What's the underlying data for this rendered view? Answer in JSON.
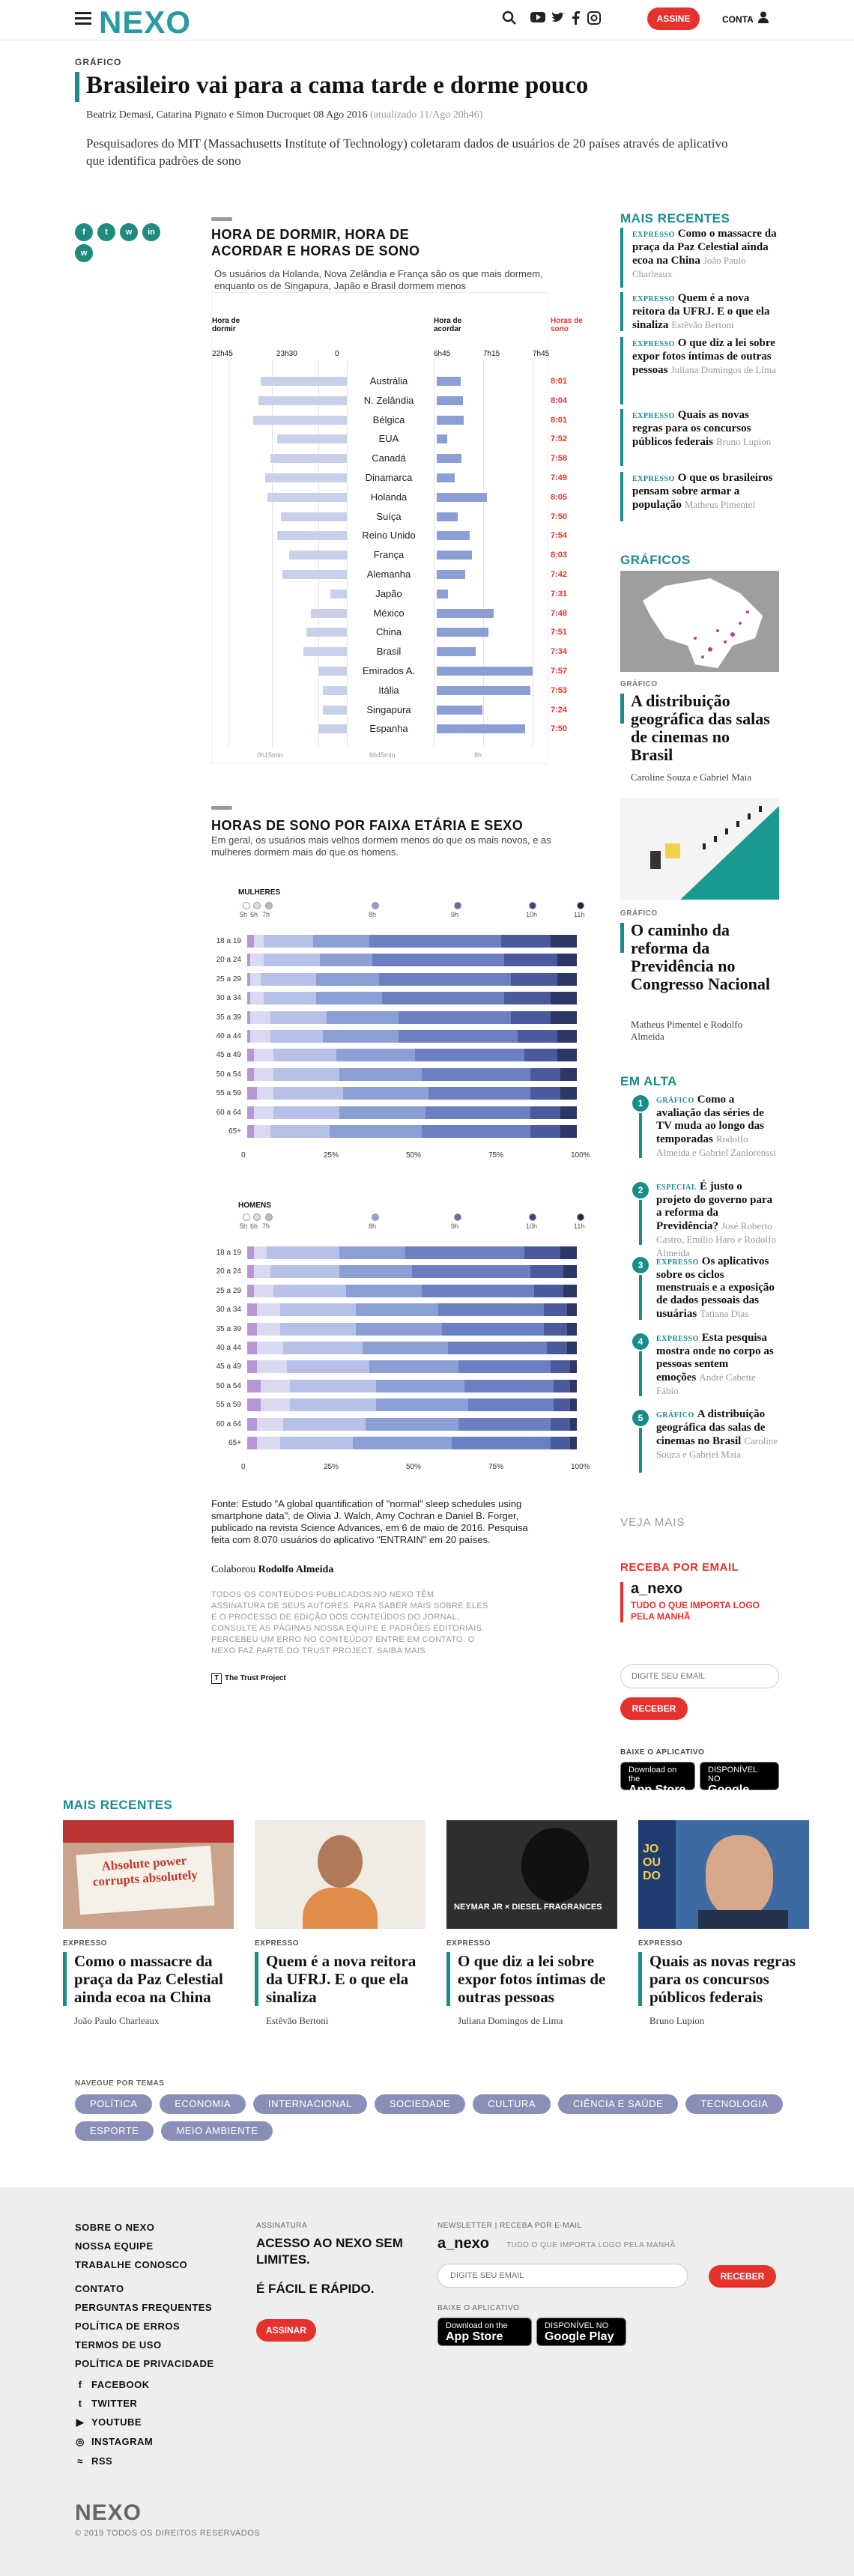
{
  "header": {
    "logo": "NEXO",
    "subscribe": "ASSINE",
    "account": "CONTA"
  },
  "article": {
    "section": "GRÁFICO",
    "title": "Brasileiro vai para a cama tarde e dorme pouco",
    "byline": "Beatriz Demasi, Catarina Pignato e Simon Ducroquet 08 Ago 2016",
    "updated": "(atualizado 11/Ago 20h46)",
    "standfirst": "Pesquisadores do MIT (Massachusetts Institute of Technology) coletaram dados de usuários de 20 países através de aplicativo que identifica padrões de sono"
  },
  "share_icons": [
    "facebook-icon",
    "twitter-icon",
    "whatsapp-icon",
    "linkedin-icon",
    "whatsapp-icon"
  ],
  "chart_data": [
    {
      "type": "bar",
      "title": "HORA DE DORMIR, HORA DE ACORDAR E HORAS DE SONO",
      "subtitle": "Os usuários da Holanda, Nova Zelândia e França são os que mais dormem, enquanto os de Singapura, Japão e Brasil dormem menos",
      "col_bed": "Hora de dormir",
      "col_wake": "Hora de acordar",
      "col_sleep": "Horas de sono",
      "bed_ticks": [
        "22h45",
        "23h30",
        "0"
      ],
      "wake_ticks": [
        "6h45",
        "7h15",
        "7h45"
      ],
      "footer_ticks": [
        "0h15min",
        "6h45min",
        "8h"
      ],
      "categories": [
        "Austrália",
        "N. Zelândia",
        "Bélgica",
        "EUA",
        "Canadá",
        "Dinamarca",
        "Holanda",
        "Suíça",
        "Reino Unido",
        "França",
        "Alemanha",
        "Japão",
        "México",
        "China",
        "Brasil",
        "Emirados A.",
        "Itália",
        "Singapura",
        "Espanha"
      ],
      "sleep_hours": [
        "8:01",
        "8:04",
        "8:01",
        "7:52",
        "7:58",
        "7:49",
        "8:05",
        "7:50",
        "7:54",
        "8:03",
        "7:42",
        "7:31",
        "7:48",
        "7:51",
        "7:34",
        "7:57",
        "7:53",
        "7:24",
        "7:50"
      ],
      "bedtime_offset": [
        0.72,
        0.74,
        0.78,
        0.58,
        0.64,
        0.68,
        0.66,
        0.55,
        0.58,
        0.48,
        0.54,
        0.14,
        0.3,
        0.34,
        0.36,
        0.24,
        0.2,
        0.2,
        0.24
      ],
      "wake_len": [
        0.25,
        0.27,
        0.28,
        0.11,
        0.26,
        0.19,
        0.52,
        0.22,
        0.34,
        0.37,
        0.3,
        0.12,
        0.59,
        0.54,
        0.41,
        1.0,
        0.98,
        0.48,
        0.92
      ]
    },
    {
      "type": "bar",
      "title": "HORAS DE SONO POR FAIXA ETÁRIA E SEXO",
      "subtitle": "Em geral, os usuários mais velhos dormem menos do que os mais novos, e as mulheres dormem mais do que os homens.",
      "hour_ticks": [
        "5h",
        "6h",
        "7h",
        "8h",
        "9h",
        "10h",
        "11h"
      ],
      "x_ticks": [
        "0",
        "25%",
        "50%",
        "75%",
        "100%"
      ],
      "ages": [
        "18 a 19",
        "20 a 24",
        "25 a 29",
        "30 a 34",
        "35 a 39",
        "40 a 44",
        "45 a 49",
        "50 a 54",
        "55 a 59",
        "60 a 64",
        "65+"
      ],
      "women_label": "MULHERES",
      "women": [
        [
          2,
          3,
          15,
          17,
          40,
          15,
          8
        ],
        [
          1,
          4,
          17,
          16,
          40,
          16,
          6
        ],
        [
          1,
          3,
          17,
          19,
          40,
          14,
          6
        ],
        [
          1,
          4,
          16,
          20,
          37,
          14,
          8
        ],
        [
          1,
          6,
          17,
          22,
          34,
          12,
          8
        ],
        [
          1,
          6,
          16,
          23,
          36,
          12,
          6
        ],
        [
          2,
          6,
          19,
          24,
          33,
          10,
          6
        ],
        [
          2,
          6,
          20,
          25,
          33,
          9,
          5
        ],
        [
          3,
          5,
          21,
          26,
          31,
          9,
          5
        ],
        [
          2,
          6,
          20,
          26,
          32,
          9,
          5
        ],
        [
          2,
          5,
          18,
          28,
          33,
          9,
          5
        ]
      ],
      "men_label": "HOMENS",
      "men": [
        [
          2,
          4,
          22,
          20,
          36,
          11,
          5
        ],
        [
          2,
          5,
          21,
          22,
          36,
          10,
          4
        ],
        [
          2,
          6,
          22,
          23,
          34,
          9,
          4
        ],
        [
          3,
          7,
          23,
          25,
          32,
          7,
          3
        ],
        [
          3,
          7,
          23,
          26,
          31,
          7,
          3
        ],
        [
          3,
          8,
          24,
          26,
          30,
          6,
          3
        ],
        [
          3,
          9,
          25,
          27,
          28,
          6,
          2
        ],
        [
          4,
          9,
          26,
          27,
          27,
          5,
          2
        ],
        [
          4,
          9,
          26,
          28,
          26,
          5,
          2
        ],
        [
          3,
          8,
          25,
          28,
          28,
          6,
          2
        ],
        [
          3,
          7,
          22,
          30,
          30,
          6,
          2
        ]
      ]
    }
  ],
  "chart_colors": [
    "#b895d6",
    "#d9d9ef",
    "#b7c1e8",
    "#8c9fd4",
    "#6b7fc2",
    "#4a5a9c",
    "#2d3766"
  ],
  "source": "Fonte: Estudo \"A global quantification of \"normal\" sleep schedules using smartphone data\", de Olivia J. Walch, Amy Cochran e Daniel B. Forger, publicado na revista Science Advances, em 6 de maio de 2016. Pesquisa feita com 8.070 usuários do aplicativo \"ENTRAIN\" em 20 países.",
  "collab_label": "Colaborou",
  "collab_name": "Rodolfo Almeida",
  "rights": "TODOS OS CONTEÚDOS PUBLICADOS NO NEXO TÊM ASSINATURA DE SEUS AUTORES. PARA SABER MAIS SOBRE ELES E O PROCESSO DE EDIÇÃO DOS CONTEÚDOS DO JORNAL, CONSULTE AS PÁGINAS NOSSA EQUIPE E PADRÕES EDITORIAIS. PERCEBEU UM ERRO NO CONTEÚDO? ENTRE EM CONTATO. O NEXO FAZ PARTE DO TRUST PROJECT. SAIBA MAIS",
  "trust": "The Trust Project",
  "sidebar": {
    "recent_title": "MAIS RECENTES",
    "recent": [
      {
        "tag": "EXPRESSO",
        "title": "Como o massacre da praça da Paz Celestial ainda ecoa na China",
        "author": "João Paulo Charleaux"
      },
      {
        "tag": "EXPRESSO",
        "title": "Quem é a nova reitora da UFRJ. E o que ela sinaliza",
        "author": "Estêvão Bertoni"
      },
      {
        "tag": "EXPRESSO",
        "title": "O que diz a lei sobre expor fotos íntimas de outras pessoas",
        "author": "Juliana Domingos de Lima"
      },
      {
        "tag": "EXPRESSO",
        "title": "Quais as novas regras para os concursos públicos federais",
        "author": "Bruno Lupion"
      },
      {
        "tag": "EXPRESSO",
        "title": "O que os brasileiros pensam sobre armar a população",
        "author": "Matheus Pimentel"
      }
    ],
    "graphics_title": "GRÁFICOS",
    "graphics": [
      {
        "tag": "GRÁFICO",
        "title": "A distribuição geográfica das salas de cinemas no Brasil",
        "author": "Caroline Souza e Gabriel Maia"
      },
      {
        "tag": "GRÁFICO",
        "title": "O caminho da reforma da Previdência no Congresso Nacional",
        "author": "Matheus Pimentel e Rodolfo Almeida"
      }
    ],
    "trending_title": "EM ALTA",
    "trending": [
      {
        "n": "1",
        "tag": "GRÁFICO",
        "title": "Como a avaliação das séries de TV muda ao longo das temporadas",
        "author": "Rodolfo Almeida e Gabriel Zanlorenssi"
      },
      {
        "n": "2",
        "tag": "ESPECIAL",
        "title": "É justo o projeto do governo para a reforma da Previdência?",
        "author": "José Roberto Castro, Emílio Haro e Rodolfo Almeida"
      },
      {
        "n": "3",
        "tag": "EXPRESSO",
        "title": "Os aplicativos sobre os ciclos menstruais e a exposição de dados pessoais das usuárias",
        "author": "Tatiana Dias"
      },
      {
        "n": "4",
        "tag": "EXPRESSO",
        "title": "Esta pesquisa mostra onde no corpo as pessoas sentem emoções",
        "author": "André Cabette Fábio"
      },
      {
        "n": "5",
        "tag": "GRÁFICO",
        "title": "A distribuição geográfica das salas de cinemas no Brasil",
        "author": "Caroline Souza e Gabriel Maia"
      }
    ],
    "see_more": "VEJA MAIS",
    "newsletter_title": "RECEBA POR EMAIL",
    "newsletter_brand": "a_nexo",
    "newsletter_desc": "TUDO O QUE IMPORTA LOGO PELA MANHÃ",
    "email_placeholder": "DIGITE SEU EMAIL",
    "receive": "RECEBER",
    "app_title": "BAIXE O APLICATIVO"
  },
  "stores": {
    "apple_small": "Download on the",
    "apple": "App Store",
    "google_small": "DISPONÍVEL NO",
    "google": "Google Play"
  },
  "bottom_recent": {
    "title": "MAIS RECENTES",
    "cards": [
      {
        "tag": "EXPRESSO",
        "title": "Como o massacre da praça da Paz Celestial ainda ecoa na China",
        "author": "João Paulo Charleaux",
        "img_text": "Absolute power corrupts absolutely"
      },
      {
        "tag": "EXPRESSO",
        "title": "Quem é a nova reitora da UFRJ. E o que ela sinaliza",
        "author": "Estêvão Bertoni",
        "img_text": ""
      },
      {
        "tag": "EXPRESSO",
        "title": "O que diz a lei sobre expor fotos íntimas de outras pessoas",
        "author": "Juliana Domingos de Lima",
        "img_text": "NEYMAR JR × DIESEL FRAGRANCES"
      },
      {
        "tag": "EXPRESSO",
        "title": "Quais as novas regras para os concursos públicos federais",
        "author": "Bruno Lupion",
        "img_text": "JO OU DO"
      }
    ]
  },
  "topics": {
    "title": "NAVEGUE POR TEMAS",
    "items": [
      "POLÍTICA",
      "ECONOMIA",
      "INTERNACIONAL",
      "SOCIEDADE",
      "CULTURA",
      "CIÊNCIA E SAÚDE",
      "TECNOLOGIA",
      "ESPORTE",
      "MEIO AMBIENTE"
    ]
  },
  "footer": {
    "col1a": [
      "SOBRE O NEXO",
      "NOSSA EQUIPE",
      "TRABALHE CONOSCO"
    ],
    "col1b": [
      "CONTATO",
      "PERGUNTAS FREQUENTES",
      "POLÍTICA DE ERROS",
      "TERMOS DE USO",
      "POLÍTICA DE PRIVACIDADE"
    ],
    "social": [
      "FACEBOOK",
      "TWITTER",
      "YOUTUBE",
      "INSTAGRAM",
      "RSS"
    ],
    "sub_label": "ASSINATURA",
    "sub_text1": "ACESSO AO NEXO SEM LIMITES.",
    "sub_text2": "É FÁCIL E RÁPIDO.",
    "sub_btn": "ASSINAR",
    "news_label": "NEWSLETTER | RECEBA POR E-MAIL",
    "news_brand": "a_nexo",
    "news_desc": "TUDO O QUE IMPORTA LOGO PELA MANHÃ",
    "email_placeholder": "DIGITE SEU EMAIL",
    "receive": "RECEBER",
    "app_label": "BAIXE O APLICATIVO",
    "logo": "NEXO",
    "copyright": "© 2019 TODOS OS DIREITOS RESERVADOS"
  }
}
